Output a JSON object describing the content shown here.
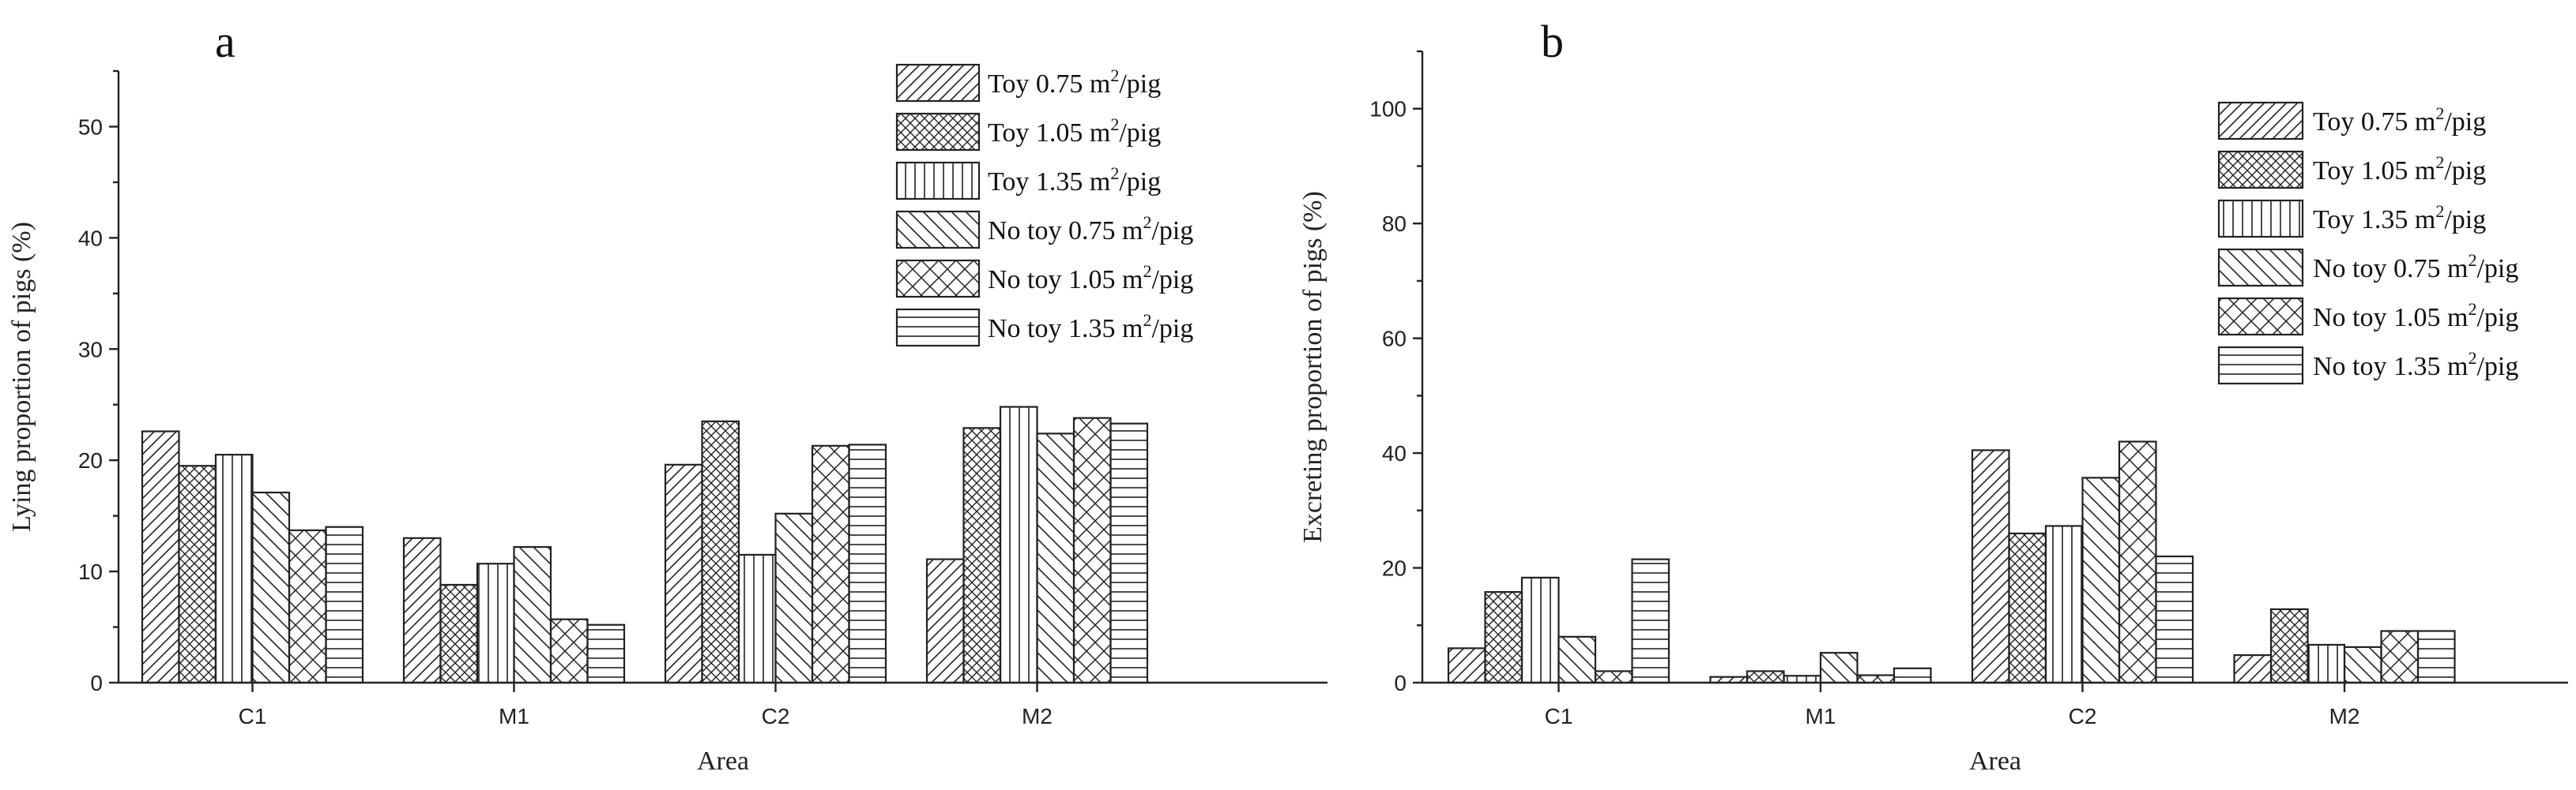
{
  "chart_data": [
    {
      "panel": "a",
      "type": "bar",
      "xlabel": "Area",
      "ylabel": "Lying proportion of pigs (%)",
      "ylim": [
        0,
        55
      ],
      "yticks": [
        0,
        10,
        20,
        30,
        40,
        50
      ],
      "categories": [
        "C1",
        "M1",
        "C2",
        "M2"
      ],
      "legend_position": "top-right",
      "series": [
        {
          "name": "Toy 0.75 m²/pig",
          "pattern": "diag-right",
          "values": [
            22.6,
            13.0,
            19.6,
            11.1
          ]
        },
        {
          "name": "Toy 1.05 m²/pig",
          "pattern": "crosshatch",
          "values": [
            19.5,
            8.8,
            23.5,
            22.9
          ]
        },
        {
          "name": "Toy 1.35 m²/pig",
          "pattern": "vertical",
          "values": [
            20.5,
            10.7,
            11.5,
            24.8
          ]
        },
        {
          "name": "No toy 0.75 m²/pig",
          "pattern": "diag-left",
          "values": [
            17.1,
            12.2,
            15.2,
            22.4
          ]
        },
        {
          "name": "No toy 1.05 m²/pig",
          "pattern": "crosshatch-wide",
          "values": [
            13.7,
            5.7,
            21.3,
            23.8
          ]
        },
        {
          "name": "No toy 1.35 m²/pig",
          "pattern": "horizontal",
          "values": [
            14.0,
            5.2,
            21.4,
            23.3
          ]
        }
      ]
    },
    {
      "panel": "b",
      "type": "bar",
      "xlabel": "Area",
      "ylabel": "Excreting proportion of pigs (%)",
      "ylim": [
        0,
        110
      ],
      "yticks": [
        0,
        20,
        40,
        60,
        80,
        100
      ],
      "categories": [
        "C1",
        "M1",
        "C2",
        "M2"
      ],
      "legend_position": "top-right",
      "series": [
        {
          "name": "Toy 0.75 m²/pig",
          "pattern": "diag-right",
          "values": [
            6.0,
            1.0,
            40.5,
            4.8
          ]
        },
        {
          "name": "Toy 1.05 m²/pig",
          "pattern": "crosshatch",
          "values": [
            15.8,
            2.0,
            26.0,
            12.8
          ]
        },
        {
          "name": "Toy 1.35 m²/pig",
          "pattern": "vertical",
          "values": [
            18.3,
            1.2,
            27.3,
            6.6
          ]
        },
        {
          "name": "No toy 0.75 m²/pig",
          "pattern": "diag-left",
          "values": [
            8.0,
            5.2,
            35.7,
            6.2
          ]
        },
        {
          "name": "No toy 1.05 m²/pig",
          "pattern": "crosshatch-wide",
          "values": [
            2.0,
            1.3,
            42.0,
            9.0
          ]
        },
        {
          "name": "No toy 1.35 m²/pig",
          "pattern": "horizontal",
          "values": [
            21.5,
            2.5,
            22.0,
            9.0
          ]
        }
      ]
    }
  ]
}
